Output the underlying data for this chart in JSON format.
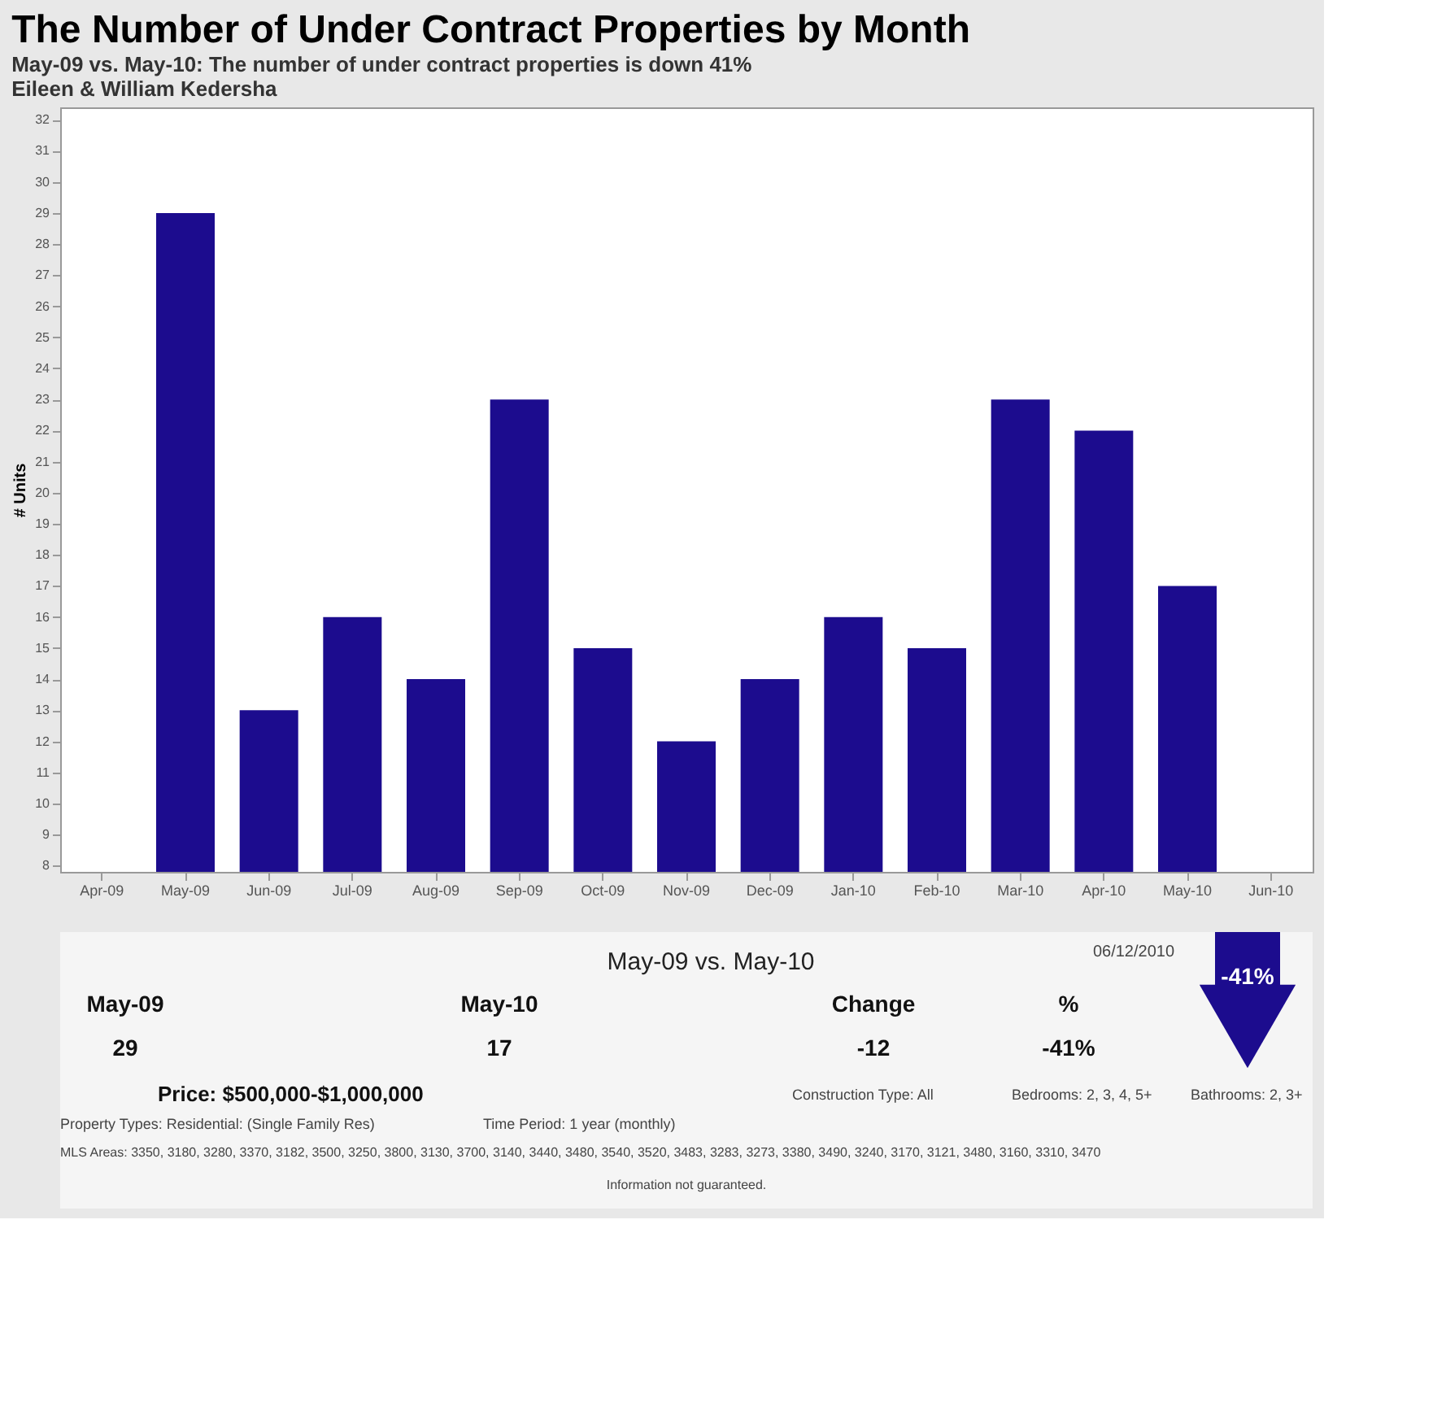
{
  "chart_data": {
    "type": "bar",
    "title": "The Number of Under Contract Properties by Month",
    "subtitle": "May-09 vs. May-10:  The number of under contract properties is down 41%",
    "ylabel": "# Units",
    "categories": [
      "Apr-09",
      "May-09",
      "Jun-09",
      "Jul-09",
      "Aug-09",
      "Sep-09",
      "Oct-09",
      "Nov-09",
      "Dec-09",
      "Jan-10",
      "Feb-10",
      "Mar-10",
      "Apr-10",
      "May-10",
      "Jun-10"
    ],
    "values": [
      null,
      29,
      13,
      16,
      14,
      23,
      15,
      12,
      14,
      16,
      15,
      23,
      22,
      17,
      null
    ],
    "color": "#1c0c8e",
    "ylim": [
      7.8,
      32.4
    ],
    "yticks": [
      8,
      9,
      10,
      11,
      12,
      13,
      14,
      15,
      16,
      17,
      18,
      19,
      20,
      21,
      22,
      23,
      24,
      25,
      26,
      27,
      28,
      29,
      30,
      31,
      32
    ],
    "grid": false,
    "annotations": [
      "Eileen & William Kedersha",
      "May-09 vs. May-10",
      "06/12/2010",
      "May-09",
      "May-10",
      "Change",
      "%",
      "29",
      "17",
      "-12",
      "-41%",
      "-41%",
      "Price: $500,000-$1,000,000",
      "Construction Type: All",
      "Bedrooms: 2, 3, 4, 5+",
      "Bathrooms: 2, 3+",
      "Property Types: Residential: (Single Family Res)",
      "Time Period: 1 year (monthly)",
      "MLS Areas: 3350, 3180, 3280, 3370, 3182, 3500, 3250, 3800, 3130, 3700, 3140, 3440, 3480, 3540, 3520, 3483, 3283, 3273, 3380, 3490, 3240, 3170, 3121, 3480, 3160, 3310, 3470",
      "Information not guaranteed."
    ]
  }
}
